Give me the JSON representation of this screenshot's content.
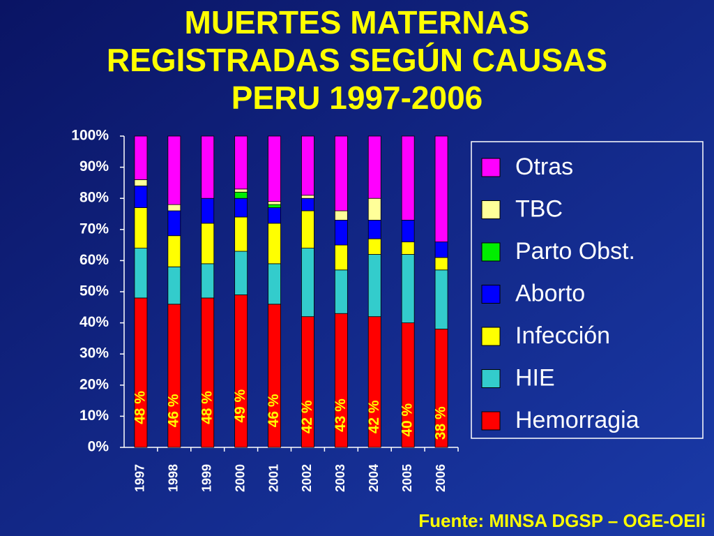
{
  "chart_data": {
    "type": "stacked_bar",
    "title": [
      "MUERTES MATERNAS",
      "REGISTRADAS SEGÚN CAUSAS",
      "PERU 1997-2006"
    ],
    "source": "Fuente: MINSA DGSP – OGE-OEIi",
    "categories": [
      "1997",
      "1998",
      "1999",
      "2000",
      "2001",
      "2002",
      "2003",
      "2004",
      "2005",
      "2006"
    ],
    "series": [
      {
        "name": "Hemorragia",
        "color": "#ff0000",
        "values": [
          48,
          46,
          48,
          49,
          46,
          42,
          43,
          42,
          40,
          38
        ],
        "value_labels": [
          "48 %",
          "46 %",
          "48 %",
          "49 %",
          "46 %",
          "42 %",
          "43 %",
          "42 %",
          "40 %",
          "38 %"
        ]
      },
      {
        "name": "HIE",
        "color": "#33cccc",
        "values": [
          16,
          12,
          11,
          14,
          13,
          22,
          14,
          20,
          22,
          19
        ]
      },
      {
        "name": "Infección",
        "color": "#ffff00",
        "values": [
          13,
          10,
          13,
          11,
          13,
          12,
          8,
          5,
          4,
          4
        ]
      },
      {
        "name": "Aborto",
        "color": "#0000ff",
        "values": [
          7,
          8,
          8,
          6,
          5,
          4,
          8,
          6,
          7,
          5
        ]
      },
      {
        "name": "Parto Obst.",
        "color": "#00ee00",
        "values": [
          0,
          0,
          0,
          2,
          1,
          0,
          0,
          0,
          0,
          0
        ]
      },
      {
        "name": "TBC",
        "color": "#ffff99",
        "values": [
          2,
          2,
          0,
          1,
          1,
          1,
          3,
          7,
          0,
          0
        ]
      },
      {
        "name": "Otras",
        "color": "#ff00ff",
        "values": [
          14,
          22,
          20,
          17,
          21,
          19,
          24,
          20,
          27,
          34
        ]
      }
    ],
    "ylim": [
      0,
      100
    ],
    "yticks": [
      {
        "value": 0,
        "label": "0%"
      },
      {
        "value": 10,
        "label": "10%"
      },
      {
        "value": 20,
        "label": "20%"
      },
      {
        "value": 30,
        "label": "30%"
      },
      {
        "value": 40,
        "label": "40%"
      },
      {
        "value": 50,
        "label": "50%"
      },
      {
        "value": 60,
        "label": "60%"
      },
      {
        "value": 70,
        "label": "70%"
      },
      {
        "value": 80,
        "label": "80%"
      },
      {
        "value": 90,
        "label": "90%"
      },
      {
        "value": 100,
        "label": "100%"
      }
    ],
    "legend": "right"
  }
}
